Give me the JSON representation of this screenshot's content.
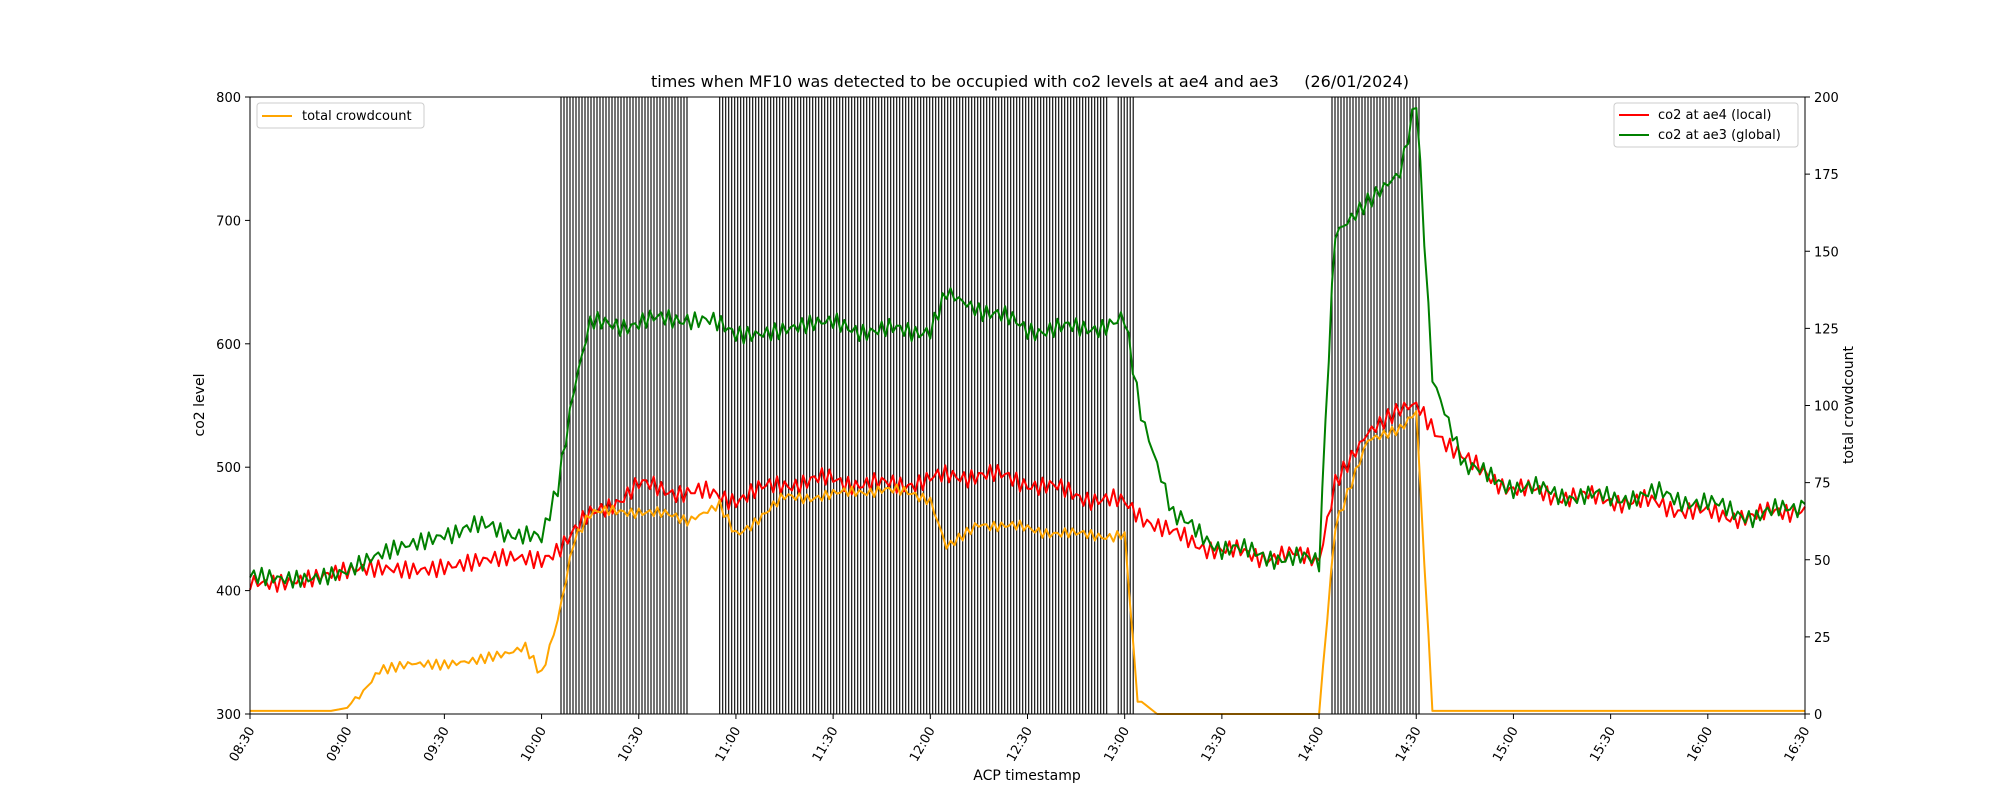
{
  "chart_data": {
    "type": "line",
    "title": "times when MF10 was detected to be occupied with co2 levels at ae4 and ae3     (26/01/2024)",
    "xlabel": "ACP timestamp",
    "ylabel": "co2 level",
    "y2label": "total crowdcount",
    "x_range": [
      "08:30",
      "16:30"
    ],
    "ylim": [
      300,
      800
    ],
    "y2lim": [
      0,
      200
    ],
    "x_ticks": [
      "08:30",
      "09:00",
      "09:30",
      "10:00",
      "10:30",
      "11:00",
      "11:30",
      "12:00",
      "12:30",
      "13:00",
      "13:30",
      "14:00",
      "14:30",
      "15:00",
      "15:30",
      "16:00",
      "16:30"
    ],
    "y_ticks": [
      "300",
      "400",
      "500",
      "600",
      "700",
      "800"
    ],
    "y2_ticks": [
      "0",
      "25",
      "50",
      "75",
      "100",
      "125",
      "150",
      "175",
      "200"
    ],
    "legend_left": {
      "placement": "upper-left",
      "label": "total crowdcount"
    },
    "legend_right": {
      "placement": "upper-right",
      "labels": [
        "co2 at ae4 (local)",
        "co2 at ae3 (global)"
      ]
    },
    "occupied_periods": [
      {
        "start": "10:06",
        "end": "10:45"
      },
      {
        "start": "10:55",
        "end": "12:55"
      },
      {
        "start": "12:58",
        "end": "13:03"
      },
      {
        "start": "14:04",
        "end": "14:31"
      }
    ],
    "series": [
      {
        "name": "co2 at ae4 (local)",
        "axis": "left",
        "color": "#ff0000",
        "x": [
          "08:30",
          "09:00",
          "09:30",
          "10:00",
          "10:15",
          "10:30",
          "10:45",
          "11:00",
          "11:15",
          "11:30",
          "11:45",
          "12:00",
          "12:15",
          "12:30",
          "12:45",
          "13:00",
          "13:15",
          "13:30",
          "13:45",
          "14:00",
          "14:05",
          "14:15",
          "14:25",
          "14:30",
          "14:45",
          "15:00",
          "15:15",
          "15:30",
          "15:45",
          "16:00",
          "16:15",
          "16:30"
        ],
        "values": [
          408,
          413,
          422,
          424,
          460,
          485,
          480,
          475,
          487,
          490,
          485,
          490,
          495,
          488,
          478,
          470,
          445,
          432,
          428,
          427,
          490,
          528,
          545,
          548,
          505,
          482,
          477,
          474,
          470,
          462,
          460,
          468
        ]
      },
      {
        "name": "co2 at ae3 (global)",
        "axis": "left",
        "color": "#008000",
        "x": [
          "08:30",
          "09:00",
          "09:30",
          "09:45",
          "10:00",
          "10:05",
          "10:10",
          "10:15",
          "10:30",
          "10:45",
          "11:00",
          "11:30",
          "11:45",
          "12:00",
          "12:05",
          "12:15",
          "12:30",
          "12:45",
          "13:00",
          "13:05",
          "13:15",
          "13:30",
          "13:45",
          "14:00",
          "14:02",
          "14:05",
          "14:15",
          "14:25",
          "14:30",
          "14:35",
          "14:45",
          "15:00",
          "15:15",
          "15:30",
          "15:45",
          "16:00",
          "16:15",
          "16:30"
        ],
        "values": [
          410,
          415,
          448,
          452,
          440,
          480,
          560,
          615,
          617,
          622,
          610,
          615,
          610,
          612,
          645,
          630,
          612,
          612,
          618,
          540,
          460,
          435,
          428,
          423,
          540,
          688,
          712,
          735,
          795,
          570,
          500,
          485,
          478,
          475,
          478,
          470,
          460,
          470
        ]
      },
      {
        "name": "total crowdcount",
        "axis": "right",
        "color": "#ffa500",
        "x": [
          "08:30",
          "08:55",
          "09:00",
          "09:05",
          "09:10",
          "09:20",
          "09:30",
          "09:40",
          "09:50",
          "09:55",
          "10:00",
          "10:05",
          "10:10",
          "10:15",
          "10:30",
          "10:45",
          "10:55",
          "11:00",
          "11:15",
          "11:30",
          "11:45",
          "12:00",
          "12:05",
          "12:15",
          "12:30",
          "12:45",
          "13:00",
          "13:04",
          "13:10",
          "13:30",
          "14:00",
          "14:05",
          "14:15",
          "14:25",
          "14:30",
          "14:35",
          "14:45",
          "15:00",
          "15:30",
          "16:00",
          "16:30"
        ],
        "values": [
          1,
          1,
          2,
          8,
          15,
          17,
          16,
          17,
          19,
          21,
          12,
          30,
          56,
          65,
          66,
          63,
          68,
          58,
          70,
          71,
          73,
          70,
          55,
          62,
          60,
          58,
          58,
          5,
          0,
          0,
          0,
          60,
          88,
          92,
          98,
          1,
          1,
          1,
          1,
          1,
          1
        ]
      }
    ]
  }
}
